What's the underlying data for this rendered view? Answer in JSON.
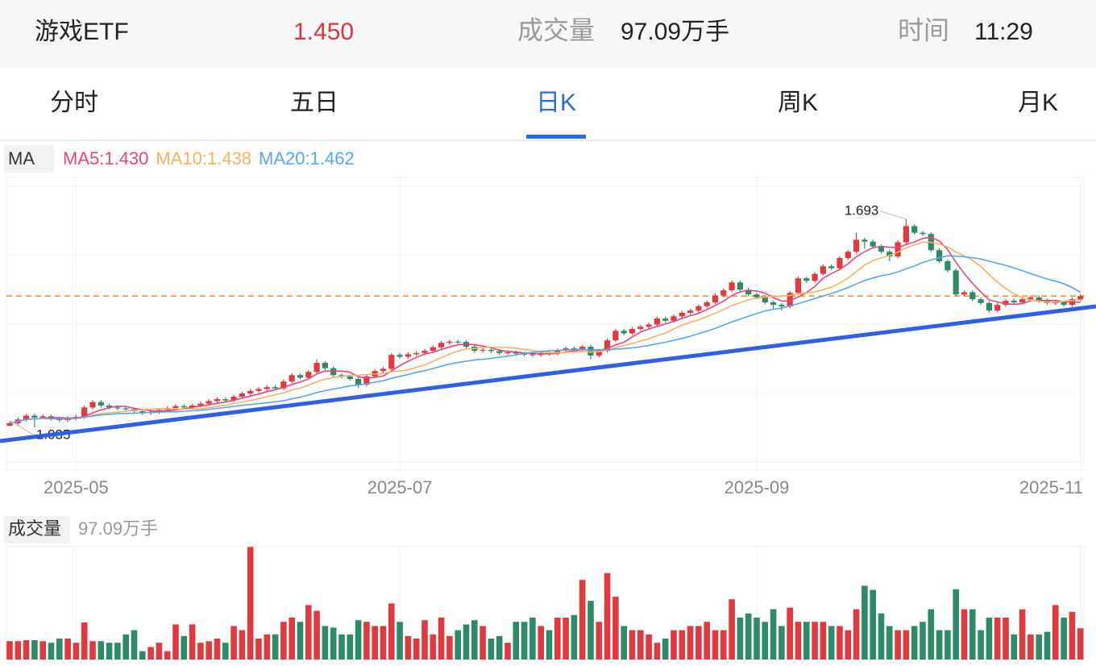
{
  "header": {
    "name": "游戏ETF",
    "price": "1.450",
    "volume_label": "成交量",
    "volume": "97.09万手",
    "time_label": "时间",
    "time": "11:29"
  },
  "tabs": [
    "分时",
    "五日",
    "日K",
    "周K",
    "月K"
  ],
  "active_tab": 2,
  "chart_data": {
    "type": "candlestick",
    "indicator_label": "MA",
    "up_color": "#e0393e",
    "down_color": "#2e8b68",
    "current_price": 1.45,
    "current_price_color": "#f08a24",
    "ylim": [
      0.9,
      1.825
    ],
    "categories": [
      null,
      null,
      null,
      null,
      null,
      null,
      null,
      null,
      "2025-05",
      null,
      null,
      null,
      null,
      null,
      null,
      null,
      null,
      null,
      null,
      null,
      null,
      null,
      null,
      null,
      null,
      null,
      null,
      null,
      null,
      null,
      null,
      null,
      null,
      null,
      null,
      null,
      null,
      null,
      null,
      null,
      null,
      null,
      null,
      null,
      null,
      null,
      null,
      "2025-07",
      null,
      null,
      null,
      null,
      null,
      null,
      null,
      null,
      null,
      null,
      null,
      null,
      null,
      null,
      null,
      null,
      null,
      null,
      null,
      null,
      null,
      null,
      null,
      null,
      null,
      null,
      null,
      null,
      null,
      null,
      null,
      null,
      null,
      null,
      null,
      null,
      null,
      null,
      null,
      null,
      null,
      null,
      "2025-09",
      null,
      null,
      null,
      null,
      null,
      null,
      null,
      null,
      null,
      null,
      null,
      null,
      null,
      null,
      null,
      null,
      null,
      null,
      null,
      null,
      null,
      null,
      null,
      null,
      null,
      null,
      null,
      null,
      null,
      null,
      null,
      null,
      null,
      null,
      null,
      null,
      null,
      null,
      "2025-11"
    ],
    "open": [
      1.04,
      1.048,
      1.06,
      1.072,
      1.066,
      1.07,
      1.062,
      1.058,
      1.064,
      1.068,
      1.098,
      1.115,
      1.104,
      1.098,
      1.095,
      1.092,
      1.086,
      1.08,
      1.084,
      1.09,
      1.096,
      1.102,
      1.098,
      1.104,
      1.11,
      1.118,
      1.124,
      1.12,
      1.132,
      1.142,
      1.15,
      1.156,
      1.162,
      1.158,
      1.18,
      1.2,
      1.192,
      1.21,
      1.239,
      1.222,
      1.2,
      1.196,
      1.188,
      1.17,
      1.196,
      1.213,
      1.22,
      1.264,
      1.258,
      1.266,
      1.27,
      1.277,
      1.288,
      1.302,
      1.306,
      1.305,
      1.29,
      1.277,
      1.28,
      1.276,
      1.27,
      1.272,
      1.268,
      1.266,
      1.264,
      1.27,
      1.268,
      1.278,
      1.285,
      1.282,
      1.29,
      1.262,
      1.277,
      1.31,
      1.34,
      1.332,
      1.346,
      1.353,
      1.36,
      1.379,
      1.372,
      1.386,
      1.397,
      1.404,
      1.418,
      1.43,
      1.452,
      1.468,
      1.493,
      1.47,
      1.455,
      1.446,
      1.43,
      1.422,
      1.417,
      1.46,
      1.506,
      1.498,
      1.52,
      1.544,
      1.538,
      1.57,
      1.59,
      1.628,
      1.622,
      1.607,
      1.59,
      1.575,
      1.62,
      1.671,
      1.65,
      1.646,
      1.595,
      1.56,
      1.531,
      1.455,
      1.462,
      1.44,
      1.428,
      1.404,
      1.422,
      1.435,
      1.43,
      1.44,
      1.446,
      1.435,
      1.428,
      1.43,
      1.422,
      1.44
    ],
    "close": [
      1.048,
      1.06,
      1.072,
      1.066,
      1.07,
      1.062,
      1.058,
      1.064,
      1.068,
      1.098,
      1.115,
      1.104,
      1.098,
      1.095,
      1.092,
      1.086,
      1.08,
      1.084,
      1.09,
      1.096,
      1.102,
      1.098,
      1.104,
      1.11,
      1.118,
      1.124,
      1.12,
      1.132,
      1.142,
      1.15,
      1.156,
      1.162,
      1.158,
      1.18,
      1.2,
      1.192,
      1.21,
      1.239,
      1.222,
      1.2,
      1.196,
      1.188,
      1.17,
      1.196,
      1.213,
      1.22,
      1.264,
      1.258,
      1.266,
      1.27,
      1.277,
      1.288,
      1.302,
      1.306,
      1.305,
      1.29,
      1.277,
      1.28,
      1.276,
      1.27,
      1.272,
      1.268,
      1.266,
      1.264,
      1.27,
      1.268,
      1.278,
      1.285,
      1.282,
      1.29,
      1.262,
      1.277,
      1.31,
      1.34,
      1.332,
      1.346,
      1.353,
      1.36,
      1.379,
      1.372,
      1.386,
      1.397,
      1.404,
      1.418,
      1.43,
      1.452,
      1.468,
      1.493,
      1.47,
      1.455,
      1.446,
      1.43,
      1.422,
      1.417,
      1.46,
      1.506,
      1.498,
      1.52,
      1.544,
      1.538,
      1.57,
      1.59,
      1.628,
      1.622,
      1.607,
      1.59,
      1.575,
      1.62,
      1.671,
      1.65,
      1.646,
      1.595,
      1.56,
      1.531,
      1.455,
      1.462,
      1.44,
      1.428,
      1.404,
      1.422,
      1.435,
      1.43,
      1.44,
      1.446,
      1.435,
      1.428,
      1.43,
      1.422,
      1.44,
      1.45
    ],
    "high": [
      1.054,
      1.066,
      1.078,
      1.078,
      1.076,
      1.076,
      1.068,
      1.07,
      1.074,
      1.104,
      1.121,
      1.121,
      1.11,
      1.104,
      1.101,
      1.098,
      1.092,
      1.09,
      1.096,
      1.102,
      1.108,
      1.108,
      1.11,
      1.116,
      1.124,
      1.13,
      1.13,
      1.138,
      1.148,
      1.156,
      1.162,
      1.168,
      1.168,
      1.186,
      1.206,
      1.206,
      1.216,
      1.25,
      1.245,
      1.228,
      1.206,
      1.202,
      1.194,
      1.202,
      1.219,
      1.226,
      1.27,
      1.27,
      1.272,
      1.276,
      1.283,
      1.294,
      1.308,
      1.312,
      1.312,
      1.311,
      1.296,
      1.286,
      1.286,
      1.282,
      1.278,
      1.278,
      1.274,
      1.272,
      1.276,
      1.276,
      1.284,
      1.291,
      1.291,
      1.296,
      1.296,
      1.283,
      1.316,
      1.346,
      1.346,
      1.352,
      1.359,
      1.366,
      1.385,
      1.385,
      1.392,
      1.403,
      1.41,
      1.424,
      1.436,
      1.458,
      1.474,
      1.499,
      1.499,
      1.476,
      1.461,
      1.452,
      1.436,
      1.428,
      1.466,
      1.512,
      1.512,
      1.526,
      1.55,
      1.55,
      1.576,
      1.596,
      1.65,
      1.634,
      1.628,
      1.613,
      1.596,
      1.626,
      1.693,
      1.677,
      1.656,
      1.652,
      1.601,
      1.566,
      1.537,
      1.468,
      1.468,
      1.446,
      1.434,
      1.428,
      1.441,
      1.441,
      1.446,
      1.452,
      1.452,
      1.441,
      1.436,
      1.436,
      1.446,
      1.456
    ],
    "low": [
      1.038,
      1.042,
      1.054,
      1.035,
      1.06,
      1.056,
      1.052,
      1.052,
      1.058,
      1.062,
      1.092,
      1.098,
      1.092,
      1.089,
      1.086,
      1.08,
      1.074,
      1.074,
      1.078,
      1.084,
      1.09,
      1.092,
      1.092,
      1.098,
      1.104,
      1.112,
      1.114,
      1.114,
      1.126,
      1.136,
      1.144,
      1.15,
      1.152,
      1.152,
      1.174,
      1.186,
      1.186,
      1.204,
      1.216,
      1.194,
      1.19,
      1.182,
      1.16,
      1.164,
      1.19,
      1.207,
      1.214,
      1.252,
      1.252,
      1.26,
      1.264,
      1.271,
      1.282,
      1.296,
      1.299,
      1.284,
      1.271,
      1.271,
      1.27,
      1.264,
      1.264,
      1.262,
      1.26,
      1.258,
      1.258,
      1.262,
      1.262,
      1.272,
      1.276,
      1.276,
      1.25,
      1.256,
      1.271,
      1.304,
      1.326,
      1.326,
      1.34,
      1.347,
      1.354,
      1.366,
      1.366,
      1.38,
      1.391,
      1.398,
      1.412,
      1.424,
      1.446,
      1.462,
      1.464,
      1.449,
      1.44,
      1.424,
      1.41,
      1.405,
      1.411,
      1.454,
      1.492,
      1.492,
      1.514,
      1.532,
      1.532,
      1.564,
      1.584,
      1.6,
      1.601,
      1.584,
      1.56,
      1.569,
      1.614,
      1.644,
      1.64,
      1.589,
      1.554,
      1.525,
      1.449,
      1.449,
      1.434,
      1.422,
      1.398,
      1.398,
      1.416,
      1.424,
      1.424,
      1.434,
      1.429,
      1.422,
      1.422,
      1.416,
      1.416,
      1.434
    ],
    "series": [
      {
        "name": "MA5:1.430",
        "color": "#e5457f",
        "values": [
          1.048,
          1.054,
          1.06,
          1.062,
          1.063,
          1.066,
          1.066,
          1.064,
          1.064,
          1.07,
          1.081,
          1.09,
          1.097,
          1.102,
          1.101,
          1.095,
          1.091,
          1.087,
          1.086,
          1.087,
          1.09,
          1.094,
          1.098,
          1.102,
          1.106,
          1.111,
          1.115,
          1.121,
          1.127,
          1.134,
          1.14,
          1.148,
          1.154,
          1.161,
          1.171,
          1.178,
          1.188,
          1.204,
          1.213,
          1.213,
          1.213,
          1.209,
          1.195,
          1.19,
          1.193,
          1.197,
          1.213,
          1.23,
          1.244,
          1.256,
          1.267,
          1.272,
          1.281,
          1.289,
          1.296,
          1.298,
          1.296,
          1.292,
          1.286,
          1.279,
          1.275,
          1.273,
          1.27,
          1.268,
          1.268,
          1.267,
          1.269,
          1.273,
          1.277,
          1.281,
          1.279,
          1.279,
          1.284,
          1.296,
          1.304,
          1.321,
          1.336,
          1.346,
          1.354,
          1.362,
          1.37,
          1.379,
          1.388,
          1.395,
          1.407,
          1.42,
          1.434,
          1.452,
          1.463,
          1.468,
          1.466,
          1.459,
          1.445,
          1.434,
          1.435,
          1.447,
          1.461,
          1.48,
          1.506,
          1.521,
          1.534,
          1.552,
          1.574,
          1.59,
          1.603,
          1.607,
          1.604,
          1.603,
          1.613,
          1.621,
          1.632,
          1.636,
          1.624,
          1.597,
          1.557,
          1.521,
          1.49,
          1.463,
          1.438,
          1.431,
          1.426,
          1.424,
          1.426,
          1.435,
          1.437,
          1.436,
          1.436,
          1.432,
          1.431,
          1.43
        ]
      },
      {
        "name": "MA10:1.438",
        "color": "#f2b463",
        "values": [
          1.048,
          1.054,
          1.06,
          1.062,
          1.063,
          1.062,
          1.062,
          1.062,
          1.063,
          1.067,
          1.074,
          1.078,
          1.081,
          1.083,
          1.086,
          1.088,
          1.091,
          1.092,
          1.094,
          1.094,
          1.093,
          1.093,
          1.093,
          1.094,
          1.097,
          1.101,
          1.105,
          1.11,
          1.115,
          1.12,
          1.126,
          1.132,
          1.138,
          1.144,
          1.153,
          1.159,
          1.168,
          1.179,
          1.187,
          1.192,
          1.196,
          1.199,
          1.2,
          1.202,
          1.203,
          1.205,
          1.211,
          1.213,
          1.217,
          1.225,
          1.232,
          1.243,
          1.256,
          1.267,
          1.276,
          1.283,
          1.284,
          1.287,
          1.288,
          1.288,
          1.287,
          1.285,
          1.281,
          1.277,
          1.274,
          1.271,
          1.271,
          1.272,
          1.273,
          1.275,
          1.273,
          1.274,
          1.279,
          1.287,
          1.293,
          1.3,
          1.308,
          1.315,
          1.325,
          1.333,
          1.346,
          1.358,
          1.367,
          1.375,
          1.385,
          1.395,
          1.407,
          1.42,
          1.429,
          1.438,
          1.443,
          1.447,
          1.449,
          1.449,
          1.452,
          1.457,
          1.46,
          1.463,
          1.47,
          1.478,
          1.491,
          1.507,
          1.527,
          1.548,
          1.562,
          1.571,
          1.578,
          1.589,
          1.602,
          1.612,
          1.62,
          1.62,
          1.614,
          1.605,
          1.589,
          1.577,
          1.563,
          1.544,
          1.518,
          1.494,
          1.474,
          1.457,
          1.445,
          1.437,
          1.434,
          1.431,
          1.43,
          1.434,
          1.436,
          1.438
        ]
      },
      {
        "name": "MA20:1.462",
        "color": "#5aa6ee",
        "values": [
          1.048,
          1.054,
          1.06,
          1.062,
          1.063,
          1.062,
          1.062,
          1.062,
          1.063,
          1.067,
          1.071,
          1.074,
          1.076,
          1.078,
          1.079,
          1.08,
          1.081,
          1.082,
          1.083,
          1.084,
          1.084,
          1.086,
          1.087,
          1.089,
          1.092,
          1.095,
          1.098,
          1.101,
          1.105,
          1.107,
          1.11,
          1.113,
          1.116,
          1.119,
          1.125,
          1.13,
          1.137,
          1.145,
          1.151,
          1.156,
          1.161,
          1.166,
          1.169,
          1.173,
          1.178,
          1.182,
          1.19,
          1.196,
          1.202,
          1.209,
          1.214,
          1.221,
          1.228,
          1.235,
          1.24,
          1.244,
          1.248,
          1.25,
          1.253,
          1.257,
          1.26,
          1.264,
          1.269,
          1.272,
          1.275,
          1.277,
          1.278,
          1.28,
          1.281,
          1.282,
          1.28,
          1.28,
          1.28,
          1.282,
          1.284,
          1.286,
          1.29,
          1.294,
          1.299,
          1.304,
          1.31,
          1.316,
          1.323,
          1.331,
          1.339,
          1.348,
          1.358,
          1.368,
          1.377,
          1.386,
          1.395,
          1.403,
          1.408,
          1.412,
          1.419,
          1.426,
          1.434,
          1.442,
          1.45,
          1.458,
          1.467,
          1.477,
          1.488,
          1.499,
          1.507,
          1.514,
          1.519,
          1.526,
          1.536,
          1.545,
          1.556,
          1.564,
          1.571,
          1.577,
          1.576,
          1.574,
          1.571,
          1.567,
          1.56,
          1.553,
          1.547,
          1.539,
          1.53,
          1.521,
          1.512,
          1.504,
          1.497,
          1.489,
          1.477,
          1.462
        ]
      }
    ],
    "volume_label": "成交量",
    "volume_text": "97.09万手",
    "volume_ylim": [
      0,
      350
    ],
    "volume": [
      57,
      57,
      60,
      60,
      57,
      52,
      65,
      65,
      52,
      115,
      57,
      57,
      52,
      52,
      78,
      91,
      26,
      39,
      52,
      26,
      109,
      73,
      109,
      52,
      57,
      65,
      52,
      104,
      91,
      349,
      65,
      78,
      78,
      117,
      130,
      117,
      169,
      151,
      104,
      99,
      78,
      78,
      122,
      117,
      104,
      104,
      174,
      117,
      73,
      65,
      122,
      78,
      130,
      73,
      91,
      109,
      122,
      104,
      65,
      73,
      52,
      117,
      117,
      130,
      104,
      91,
      130,
      130,
      138,
      247,
      182,
      117,
      268,
      195,
      104,
      91,
      91,
      78,
      52,
      65,
      91,
      91,
      104,
      104,
      117,
      91,
      91,
      187,
      130,
      143,
      130,
      117,
      156,
      104,
      161,
      117,
      117,
      117,
      117,
      104,
      104,
      91,
      156,
      229,
      216,
      143,
      104,
      91,
      91,
      104,
      117,
      156,
      91,
      91,
      218,
      156,
      156,
      91,
      130,
      130,
      130,
      78,
      156,
      78,
      78,
      86,
      169,
      130,
      148,
      97.09
    ]
  }
}
